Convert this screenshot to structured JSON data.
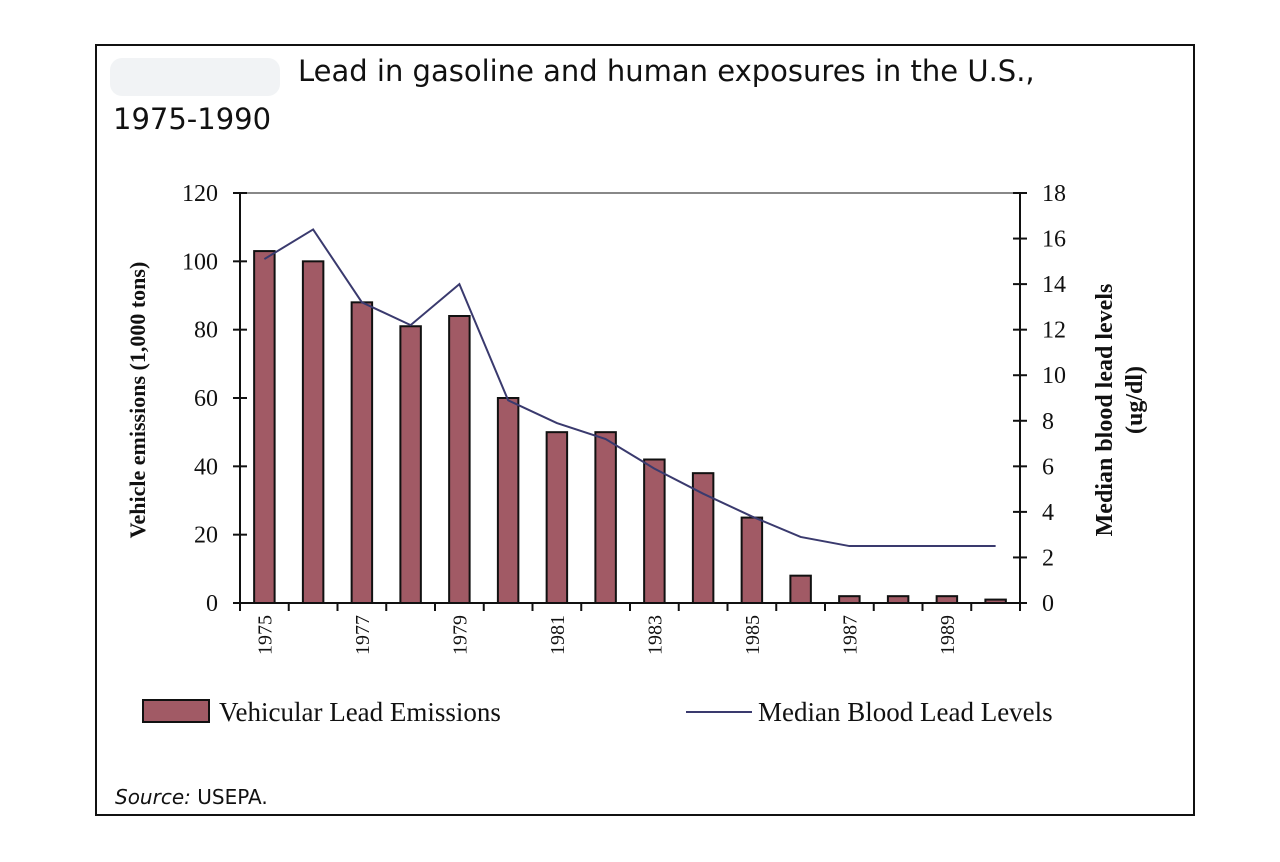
{
  "title_line1": "Lead in gasoline and human exposures in the U.S.,",
  "title_line2": "1975-1990",
  "source_label": "Source:",
  "source_value": "USEPA.",
  "colors": {
    "bar": "#a15a65",
    "line": "#3a3a6e"
  },
  "chart_data": {
    "type": "bar+line",
    "categories": [
      1975,
      1976,
      1977,
      1978,
      1979,
      1980,
      1981,
      1982,
      1983,
      1984,
      1985,
      1986,
      1987,
      1988,
      1989,
      1990
    ],
    "tick_labels": [
      "1975",
      "1977",
      "1979",
      "1981",
      "1983",
      "1985",
      "1987",
      "1989"
    ],
    "series": [
      {
        "name": "Vehicular Lead Emissions",
        "type": "bar",
        "axis": "left",
        "values": [
          103,
          100,
          88,
          81,
          84,
          60,
          50,
          50,
          42,
          38,
          25,
          8,
          2,
          2,
          2,
          1
        ]
      },
      {
        "name": "Median Blood Lead Levels",
        "type": "line",
        "axis": "right",
        "values": [
          15.1,
          16.4,
          13.2,
          12.2,
          14.0,
          8.9,
          7.9,
          7.2,
          5.9,
          4.8,
          3.8,
          2.9,
          2.5,
          2.5,
          2.5,
          2.5
        ]
      }
    ],
    "ylabel": "Vehicle emissions (1,000 tons)",
    "ylim": [
      0,
      120
    ],
    "yticks": [
      0,
      20,
      40,
      60,
      80,
      100,
      120
    ],
    "y2label_line1": "Median blood lead levels",
    "y2label_line2": "(ug/dl)",
    "y2lim": [
      0,
      18
    ],
    "y2ticks": [
      0,
      2,
      4,
      6,
      8,
      10,
      12,
      14,
      16,
      18
    ],
    "legend": "bottom",
    "grid": false
  }
}
